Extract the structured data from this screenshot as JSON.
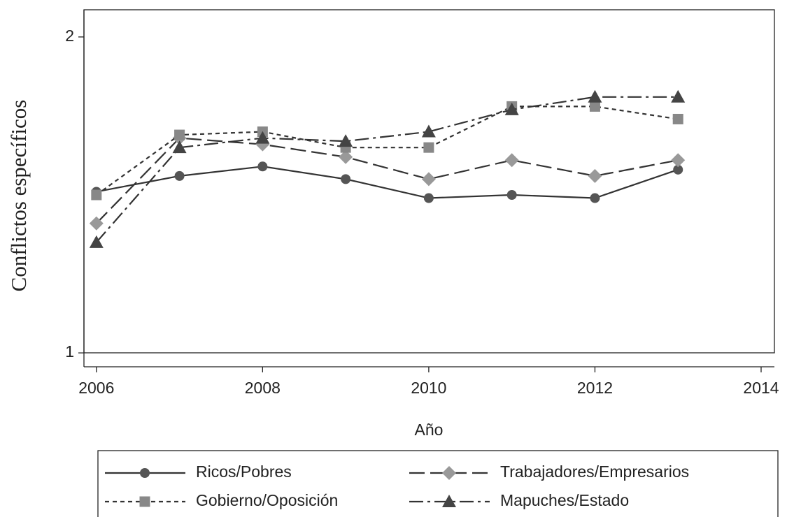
{
  "chart_data": {
    "type": "line",
    "x_label": "Año",
    "y_label": "Conflictos específicos",
    "x": [
      2006,
      2007,
      2008,
      2009,
      2010,
      2011,
      2012,
      2013
    ],
    "series": [
      {
        "name": "Ricos/Pobres",
        "color": "#555555",
        "marker": "circle",
        "line_style": "solid",
        "values": [
          1.51,
          1.56,
          1.59,
          1.55,
          1.49,
          1.5,
          1.49,
          1.58
        ]
      },
      {
        "name": "Trabajadores/Empresarios",
        "color": "#999999",
        "marker": "diamond",
        "line_style": "longdash",
        "values": [
          1.41,
          1.68,
          1.66,
          1.62,
          1.55,
          1.61,
          1.56,
          1.61
        ]
      },
      {
        "name": "Gobierno/Oposición",
        "color": "#888888",
        "marker": "square",
        "line_style": "shortdash",
        "values": [
          1.5,
          1.69,
          1.7,
          1.65,
          1.65,
          1.78,
          1.78,
          1.74
        ]
      },
      {
        "name": "Mapuches/Estado",
        "color": "#444444",
        "marker": "triangle",
        "line_style": "dashdot",
        "values": [
          1.35,
          1.65,
          1.68,
          1.67,
          1.7,
          1.77,
          1.81,
          1.81
        ]
      }
    ],
    "xlim": [
      2005.85,
      2014.16
    ],
    "xticks": [
      2006,
      2008,
      2010,
      2012,
      2014
    ],
    "ylim": [
      0.956,
      2.086
    ],
    "yticks": [
      1,
      2
    ],
    "grid": false,
    "legend": "bottom"
  }
}
